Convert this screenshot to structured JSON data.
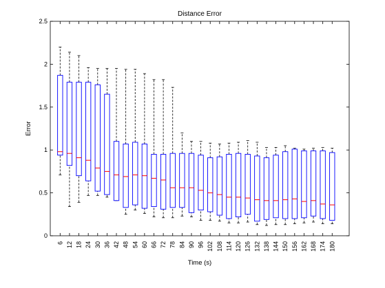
{
  "chart_data": {
    "type": "boxplot",
    "title": "Distance Error",
    "xlabel": "Time (s)",
    "ylabel": "Error",
    "ylim": [
      0,
      2.5
    ],
    "yticks": [
      0,
      0.5,
      1,
      1.5,
      2,
      2.5
    ],
    "ytick_labels": [
      "0",
      "0.5",
      "1",
      "1.5",
      "2",
      "2.5"
    ],
    "categories": [
      "6",
      "12",
      "18",
      "24",
      "30",
      "36",
      "42",
      "48",
      "54",
      "60",
      "66",
      "72",
      "78",
      "84",
      "90",
      "96",
      "102",
      "108",
      "114",
      "120",
      "126",
      "132",
      "138",
      "144",
      "150",
      "156",
      "162",
      "168",
      "174",
      "180"
    ],
    "grid": false,
    "colors": {
      "box": "#0000ff",
      "median": "#ff0000",
      "whisker": "#000000"
    },
    "boxes": [
      {
        "whislo": 0.71,
        "q1": 0.94,
        "med": 0.98,
        "q3": 1.87,
        "whishi": 2.2
      },
      {
        "whislo": 0.34,
        "q1": 0.82,
        "med": 0.96,
        "q3": 1.79,
        "whishi": 2.14
      },
      {
        "whislo": 0.39,
        "q1": 0.7,
        "med": 0.91,
        "q3": 1.79,
        "whishi": 2.1
      },
      {
        "whislo": 0.47,
        "q1": 0.64,
        "med": 0.88,
        "q3": 1.79,
        "whishi": 1.96
      },
      {
        "whislo": 0.47,
        "q1": 0.52,
        "med": 0.79,
        "q3": 1.76,
        "whishi": 1.95
      },
      {
        "whislo": 0.45,
        "q1": 0.48,
        "med": 0.75,
        "q3": 1.65,
        "whishi": 1.95
      },
      {
        "whislo": 0.41,
        "q1": 0.41,
        "med": 0.71,
        "q3": 1.1,
        "whishi": 1.95
      },
      {
        "whislo": 0.25,
        "q1": 0.33,
        "med": 0.69,
        "q3": 1.07,
        "whishi": 1.94
      },
      {
        "whislo": 0.3,
        "q1": 0.36,
        "med": 0.71,
        "q3": 1.09,
        "whishi": 1.94
      },
      {
        "whislo": 0.26,
        "q1": 0.32,
        "med": 0.7,
        "q3": 1.07,
        "whishi": 1.89
      },
      {
        "whislo": 0.22,
        "q1": 0.34,
        "med": 0.67,
        "q3": 0.95,
        "whishi": 1.82
      },
      {
        "whislo": 0.21,
        "q1": 0.31,
        "med": 0.65,
        "q3": 0.95,
        "whishi": 1.82
      },
      {
        "whislo": 0.21,
        "q1": 0.33,
        "med": 0.56,
        "q3": 0.96,
        "whishi": 1.73
      },
      {
        "whislo": 0.23,
        "q1": 0.33,
        "med": 0.56,
        "q3": 0.96,
        "whishi": 1.2
      },
      {
        "whislo": 0.22,
        "q1": 0.27,
        "med": 0.56,
        "q3": 0.96,
        "whishi": 1.1
      },
      {
        "whislo": 0.18,
        "q1": 0.3,
        "med": 0.53,
        "q3": 0.94,
        "whishi": 1.1
      },
      {
        "whislo": 0.18,
        "q1": 0.28,
        "med": 0.5,
        "q3": 0.91,
        "whishi": 1.08
      },
      {
        "whislo": 0.17,
        "q1": 0.24,
        "med": 0.48,
        "q3": 0.92,
        "whishi": 1.07
      },
      {
        "whislo": 0.15,
        "q1": 0.2,
        "med": 0.45,
        "q3": 0.95,
        "whishi": 1.08
      },
      {
        "whislo": 0.15,
        "q1": 0.22,
        "med": 0.45,
        "q3": 0.96,
        "whishi": 1.09
      },
      {
        "whislo": 0.16,
        "q1": 0.25,
        "med": 0.44,
        "q3": 0.95,
        "whishi": 1.11
      },
      {
        "whislo": 0.13,
        "q1": 0.17,
        "med": 0.42,
        "q3": 0.93,
        "whishi": 1.09
      },
      {
        "whislo": 0.12,
        "q1": 0.19,
        "med": 0.41,
        "q3": 0.91,
        "whishi": 1.03
      },
      {
        "whislo": 0.13,
        "q1": 0.21,
        "med": 0.41,
        "q3": 0.94,
        "whishi": 1.03
      },
      {
        "whislo": 0.13,
        "q1": 0.2,
        "med": 0.42,
        "q3": 0.98,
        "whishi": 1.05
      },
      {
        "whislo": 0.14,
        "q1": 0.2,
        "med": 0.43,
        "q3": 1.01,
        "whishi": 1.02
      },
      {
        "whislo": 0.15,
        "q1": 0.21,
        "med": 0.4,
        "q3": 0.99,
        "whishi": 1.01
      },
      {
        "whislo": 0.16,
        "q1": 0.23,
        "med": 0.41,
        "q3": 0.99,
        "whishi": 1.02
      },
      {
        "whislo": 0.14,
        "q1": 0.2,
        "med": 0.37,
        "q3": 0.99,
        "whishi": 1.03
      },
      {
        "whislo": 0.14,
        "q1": 0.18,
        "med": 0.36,
        "q3": 0.97,
        "whishi": 1.02
      }
    ]
  }
}
